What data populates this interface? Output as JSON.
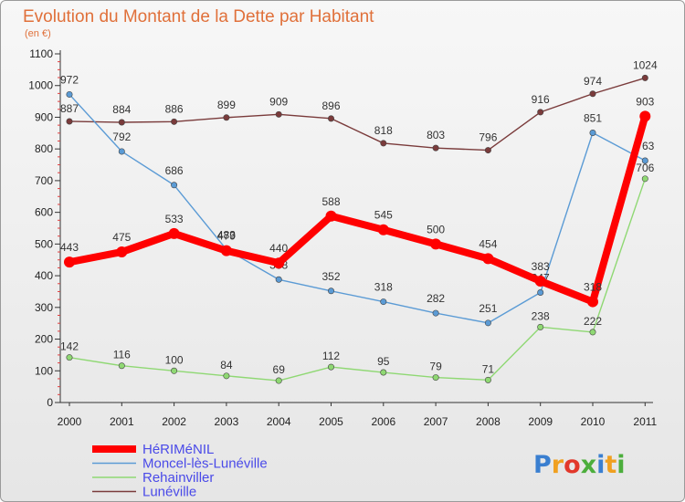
{
  "chart_data": {
    "type": "line",
    "title": "Evolution du Montant de la Dette par Habitant",
    "subtitle": "(en €)",
    "x": [
      "2000",
      "2001",
      "2002",
      "2003",
      "2004",
      "2005",
      "2006",
      "2007",
      "2008",
      "2009",
      "2010",
      "2011"
    ],
    "yticks": [
      "0",
      "100",
      "200",
      "300",
      "400",
      "500",
      "600",
      "700",
      "800",
      "900",
      "1000",
      "1100"
    ],
    "ylim": [
      0,
      1100
    ],
    "grid": false,
    "legend_position": "bottom-left",
    "series": [
      {
        "name": "HéRIMéNIL",
        "color": "#ff0000",
        "values": [
          443,
          475,
          533,
          479,
          440,
          588,
          545,
          500,
          454,
          383,
          318,
          903
        ],
        "labels": [
          "443",
          "475",
          "533",
          "479",
          "440",
          "588",
          "545",
          "500",
          "454",
          "383",
          "318",
          "903"
        ]
      },
      {
        "name": "Moncel-lès-Lunéville",
        "color": "#5b9bd5",
        "values": [
          972,
          792,
          686,
          483,
          388,
          352,
          318,
          282,
          251,
          347,
          851,
          763
        ],
        "labels": [
          "972",
          "792",
          "686",
          "483",
          "388",
          "352",
          "318",
          "282",
          "251",
          "347",
          "851",
          "763"
        ]
      },
      {
        "name": "Rehainviller",
        "color": "#8fd873",
        "values": [
          142,
          116,
          100,
          84,
          69,
          112,
          95,
          79,
          71,
          238,
          222,
          706
        ],
        "labels": [
          "142",
          "116",
          "100",
          "84",
          "69",
          "112",
          "95",
          "79",
          "71",
          "238",
          "222",
          "706"
        ]
      },
      {
        "name": "Lunéville",
        "color": "#7a3b3b",
        "values": [
          887,
          884,
          886,
          899,
          909,
          896,
          818,
          803,
          796,
          916,
          974,
          1024
        ],
        "labels": [
          "887",
          "884",
          "886",
          "899",
          "909",
          "896",
          "818",
          "803",
          "796",
          "916",
          "974",
          "1024"
        ]
      }
    ]
  },
  "branding": {
    "letters": [
      "P",
      "r",
      "o",
      "x",
      "i",
      "t",
      "i"
    ],
    "colors": [
      "#3a7fd0",
      "#f0a020",
      "#e2382b",
      "#4cae3c",
      "#3a7fd0",
      "#f0a020",
      "#4cae3c"
    ]
  }
}
